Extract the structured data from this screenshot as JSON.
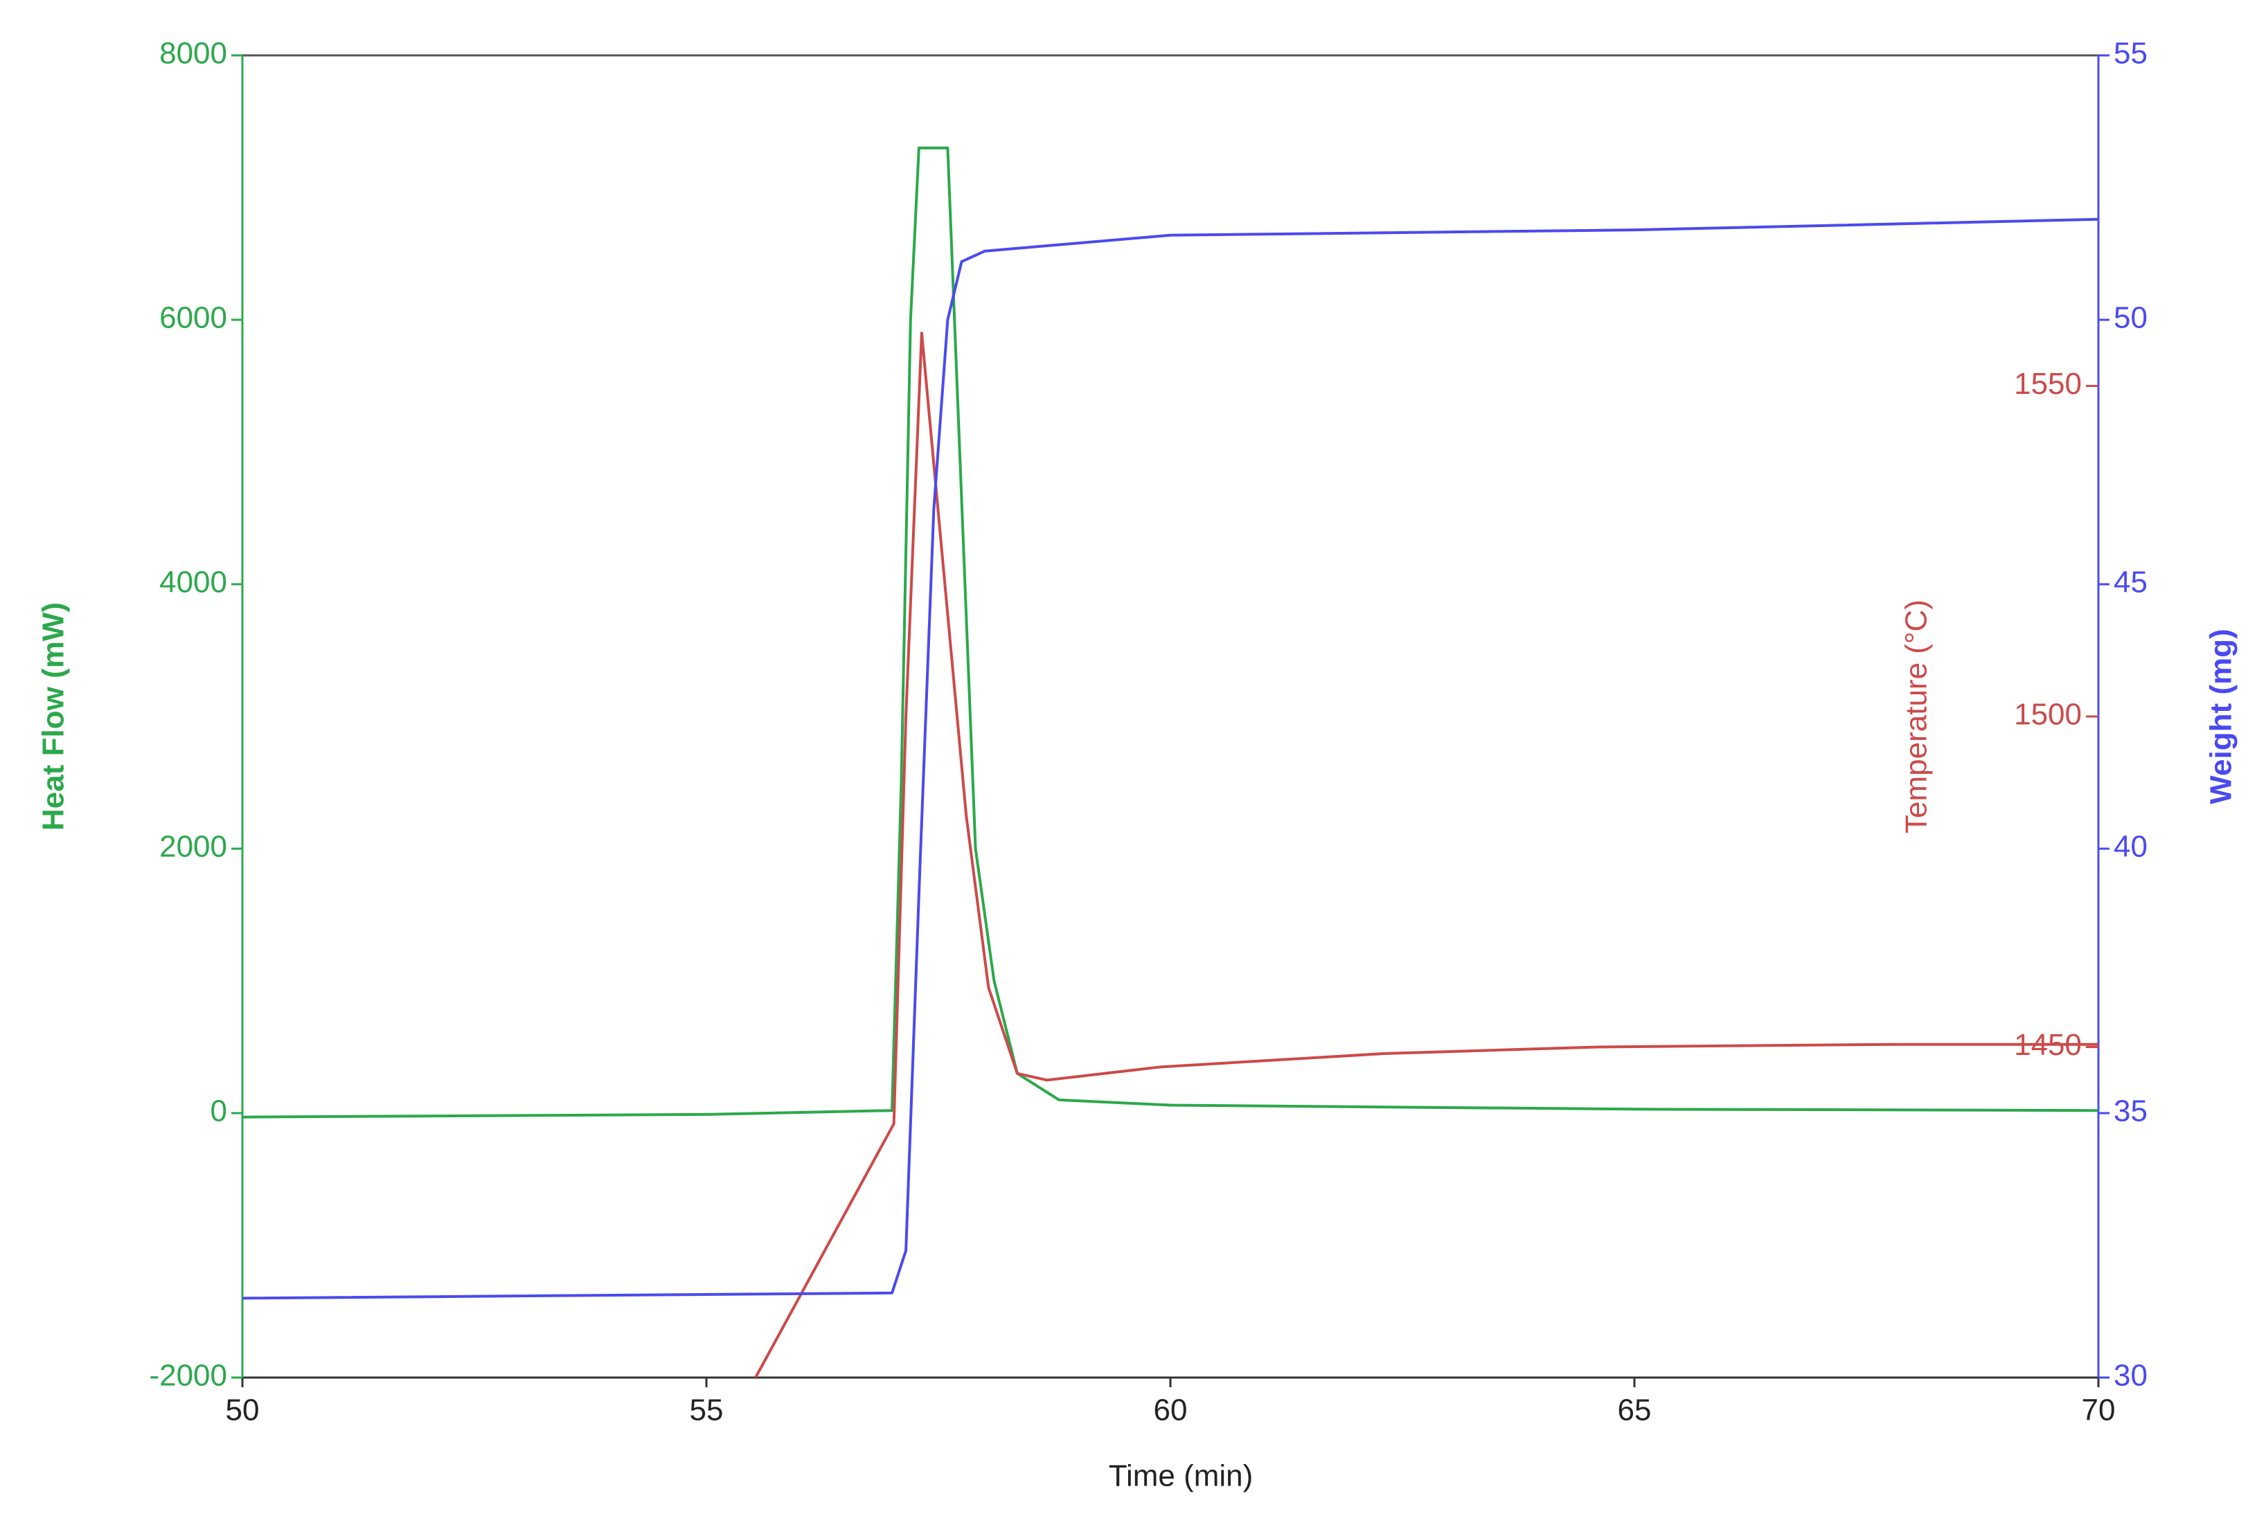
{
  "chart_data": {
    "type": "line",
    "xlabel": "Time (min)",
    "ylabel": "Heat Flow (mW)",
    "y2label": "Temperature (°C)",
    "y3label": "Weight (mg)",
    "xlim": [
      50,
      70
    ],
    "xticks": [
      50,
      55,
      60,
      65,
      70
    ],
    "ylim": [
      -2000,
      8000
    ],
    "yticks": [
      -2000,
      0,
      2000,
      4000,
      6000,
      8000
    ],
    "y2lim": [
      1400,
      1600
    ],
    "y2ticks": [
      1450,
      1500,
      1550
    ],
    "y3lim": [
      30,
      55
    ],
    "y3ticks": [
      30,
      35,
      40,
      45,
      50,
      55
    ],
    "series": [
      {
        "name": "Heat Flow",
        "color": "#2ca84c",
        "axis": "y",
        "x": [
          50,
          55,
          57.0,
          57.1,
          57.2,
          57.29,
          57.6,
          57.73,
          57.9,
          58.1,
          58.35,
          58.8,
          60,
          65,
          70
        ],
        "values": [
          -30,
          -10,
          20,
          2500,
          6000,
          7300,
          7300,
          5000,
          2000,
          1000,
          300,
          100,
          60,
          30,
          20
        ]
      },
      {
        "name": "Temperature",
        "color": "#cc4a4a",
        "axis": "y2",
        "x": [
          55.53,
          57.02,
          57.15,
          57.32,
          57.57,
          57.8,
          58.04,
          58.35,
          58.67,
          59.9,
          62.3,
          64.6,
          67.8,
          70
        ],
        "values": [
          1400,
          1438.4,
          1500,
          1558,
          1520,
          1485,
          1459,
          1446,
          1445,
          1447,
          1449,
          1450,
          1450.4,
          1450.4
        ]
      },
      {
        "name": "Weight",
        "color": "#4a4af0",
        "axis": "y3",
        "x": [
          50,
          57.0,
          57.15,
          57.3,
          57.45,
          57.6,
          57.75,
          58.0,
          60,
          65,
          70
        ],
        "values": [
          31.5,
          31.6,
          32.4,
          39.6,
          46.4,
          50,
          51.1,
          51.3,
          51.6,
          51.7,
          51.9
        ]
      }
    ]
  }
}
